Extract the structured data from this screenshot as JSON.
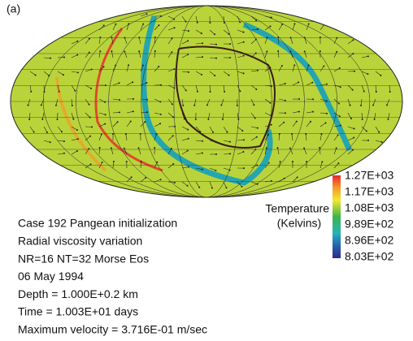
{
  "panel_label": "(a)",
  "colorbar": {
    "title": "Temperature",
    "unit": "(Kelvins)",
    "labels": [
      "1.27E+03",
      "1.17E+03",
      "1.08E+03",
      "9.89E+02",
      "8.96E+02",
      "8.03E+02"
    ]
  },
  "caption": {
    "lines": [
      "Case 192 Pangean initialization",
      "Radial viscosity variation",
      "NR=16 NT=32 Morse Eos",
      "06 May 1994",
      "Depth = 1.000E+0.2 km",
      "Time = 1.003E+01 days",
      "Maximum velocity = 3.716E-01 m/sec"
    ]
  }
}
